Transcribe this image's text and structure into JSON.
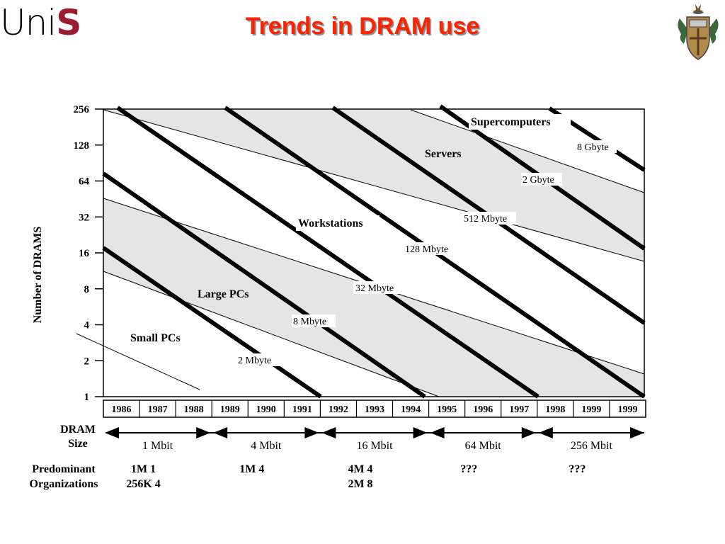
{
  "logo": {
    "part1": "Uni",
    "part2": "S"
  },
  "title": "Trends in DRAM use",
  "crest_icon": "coat-of-arms-icon",
  "chart": {
    "ylabel": "Number of DRAMS",
    "y_ticks": [
      "256",
      "128",
      "64",
      "32",
      "16",
      "8",
      "4",
      "2",
      "1"
    ],
    "years": [
      "1986",
      "1987",
      "1988",
      "1989",
      "1990",
      "1991",
      "1992",
      "1993",
      "1994",
      "1995",
      "1996",
      "1997",
      "1998",
      "1999",
      "1999"
    ],
    "regions": [
      "Supercomputers",
      "Servers",
      "Workstations",
      "Large PCs",
      "Small PCs"
    ],
    "memory_labels": [
      "8 Gbyte",
      "2 Gbyte",
      "512 Mbyte",
      "128 Mbyte",
      "32 Mbyte",
      "8 Mbyte",
      "2 Mbyte"
    ]
  },
  "dram_size": {
    "label_line1": "DRAM",
    "label_line2": "Size",
    "sizes": [
      "1 Mbit",
      "4 Mbit",
      "16 Mbit",
      "64 Mbit",
      "256 Mbit"
    ]
  },
  "organizations": {
    "label_line1": "Predominant",
    "label_line2": "Organizations",
    "cols": [
      {
        "line1": "1M    1",
        "line2": "256K    4"
      },
      {
        "line1": "1M    4",
        "line2": ""
      },
      {
        "line1": "4M    4",
        "line2": "2M    8"
      },
      {
        "line1": "???",
        "line2": ""
      },
      {
        "line1": "???",
        "line2": ""
      }
    ]
  }
}
